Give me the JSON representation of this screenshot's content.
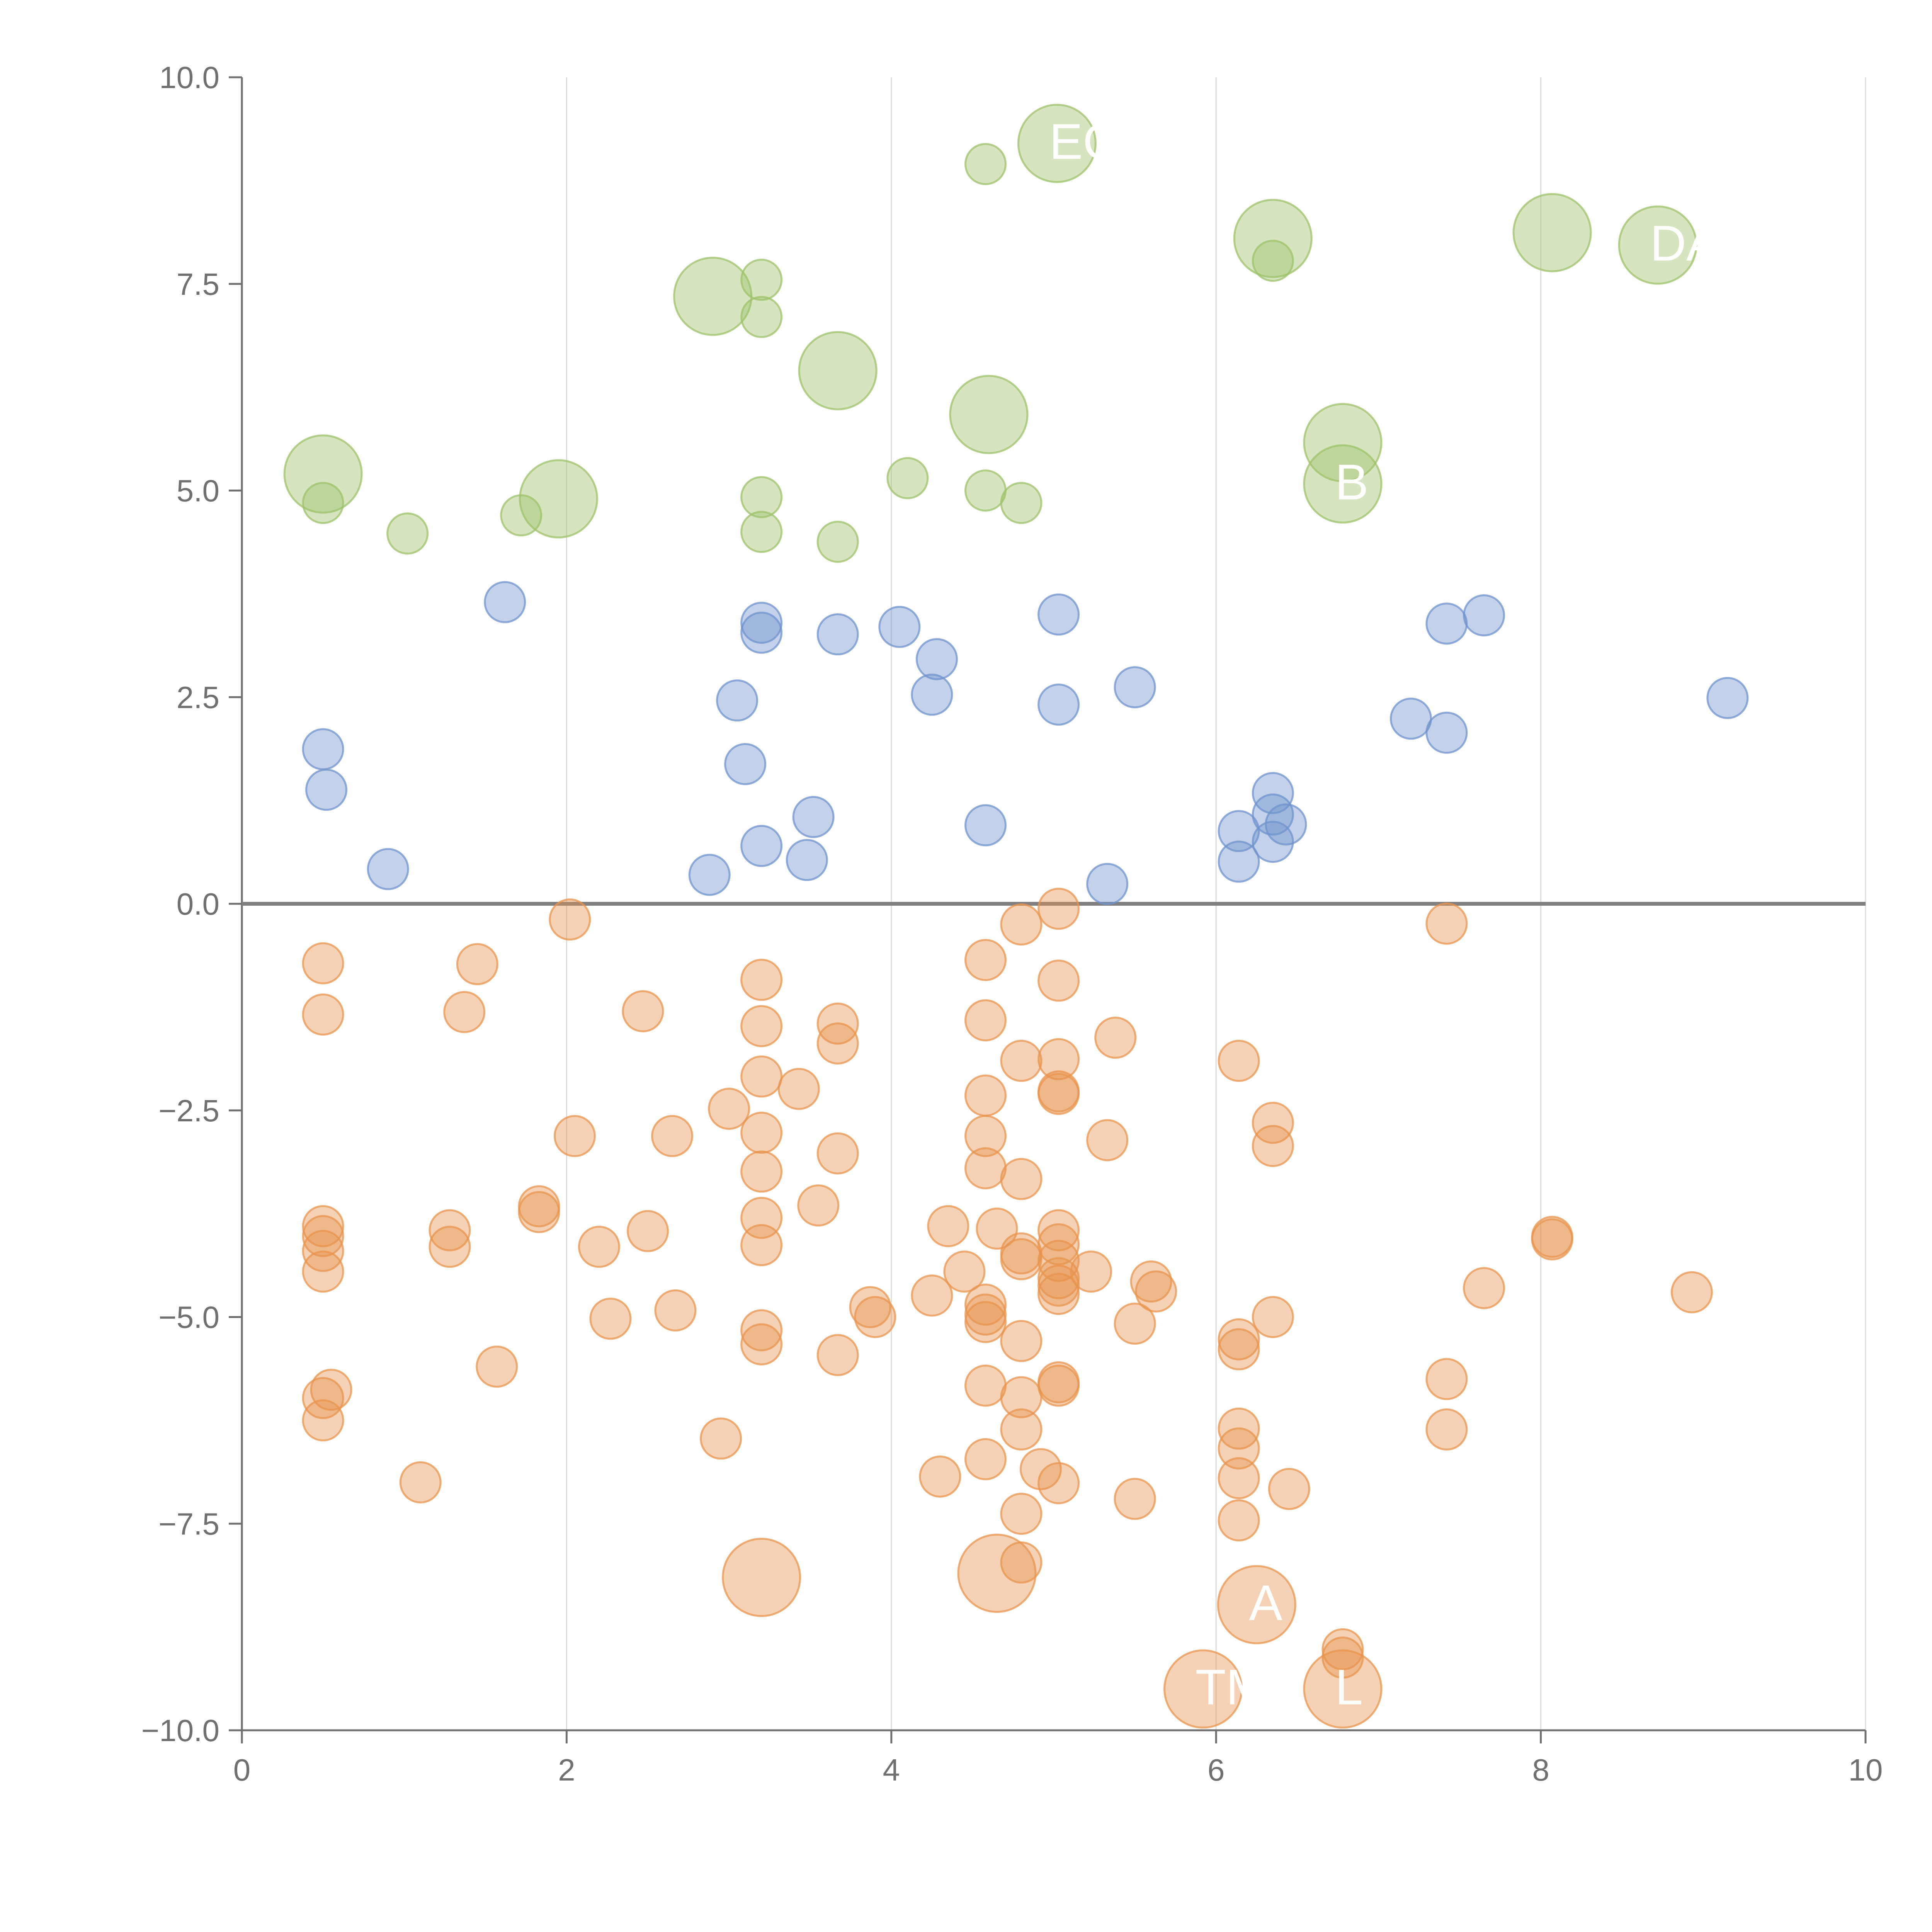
{
  "chart_data": {
    "type": "scatter",
    "title": "",
    "xlabel": "",
    "ylabel": "",
    "xlim": [
      0,
      10
    ],
    "ylim": [
      -10,
      10
    ],
    "grid": "vertical",
    "x_ticks": [
      "0",
      "2",
      "4",
      "6",
      "8",
      "10"
    ],
    "y_ticks": [
      "−10.0",
      "−7.5",
      "−5.0",
      "−2.5",
      "0.0",
      "2.5",
      "5.0",
      "7.5",
      "10.0"
    ],
    "colors": {
      "green": "#9dc26a",
      "blue": "#6f93ce",
      "orange": "#e8944e",
      "axis": "#707070",
      "grid": "#dcdcdc",
      "zero_line": "#808080"
    },
    "series": [
      {
        "name": "green",
        "points": [
          {
            "x": 0.5,
            "y": 5.2,
            "size": "large"
          },
          {
            "x": 0.5,
            "y": 4.85
          },
          {
            "x": 1.02,
            "y": 4.48
          },
          {
            "x": 1.72,
            "y": 4.7
          },
          {
            "x": 1.95,
            "y": 4.9,
            "size": "large"
          },
          {
            "x": 2.9,
            "y": 7.35,
            "size": "large"
          },
          {
            "x": 3.2,
            "y": 7.55
          },
          {
            "x": 3.2,
            "y": 7.1
          },
          {
            "x": 3.2,
            "y": 4.92
          },
          {
            "x": 3.2,
            "y": 4.5
          },
          {
            "x": 3.67,
            "y": 6.45,
            "size": "large"
          },
          {
            "x": 3.67,
            "y": 4.38
          },
          {
            "x": 4.1,
            "y": 5.15
          },
          {
            "x": 4.58,
            "y": 8.95
          },
          {
            "x": 4.58,
            "y": 5.0
          },
          {
            "x": 4.6,
            "y": 5.92,
            "size": "large"
          },
          {
            "x": 4.8,
            "y": 4.85
          },
          {
            "x": 5.02,
            "y": 9.2,
            "size": "large"
          },
          {
            "x": 6.35,
            "y": 8.05,
            "size": "large"
          },
          {
            "x": 6.35,
            "y": 7.78
          },
          {
            "x": 6.78,
            "y": 5.58,
            "size": "large"
          },
          {
            "x": 6.78,
            "y": 5.08,
            "size": "large"
          },
          {
            "x": 8.07,
            "y": 8.12,
            "size": "large"
          },
          {
            "x": 8.72,
            "y": 7.97,
            "size": "large"
          }
        ]
      },
      {
        "name": "blue",
        "points": [
          {
            "x": 0.5,
            "y": 1.87
          },
          {
            "x": 0.52,
            "y": 1.38
          },
          {
            "x": 0.9,
            "y": 0.42
          },
          {
            "x": 1.62,
            "y": 3.65
          },
          {
            "x": 2.88,
            "y": 0.35
          },
          {
            "x": 3.05,
            "y": 2.46
          },
          {
            "x": 3.1,
            "y": 1.69
          },
          {
            "x": 3.2,
            "y": 3.4
          },
          {
            "x": 3.2,
            "y": 3.28
          },
          {
            "x": 3.2,
            "y": 0.7
          },
          {
            "x": 3.48,
            "y": 0.53
          },
          {
            "x": 3.52,
            "y": 1.05
          },
          {
            "x": 3.67,
            "y": 3.26
          },
          {
            "x": 4.05,
            "y": 3.35
          },
          {
            "x": 4.25,
            "y": 2.53
          },
          {
            "x": 4.28,
            "y": 2.96
          },
          {
            "x": 4.58,
            "y": 0.95
          },
          {
            "x": 5.03,
            "y": 3.5
          },
          {
            "x": 5.03,
            "y": 2.41
          },
          {
            "x": 5.33,
            "y": 0.24
          },
          {
            "x": 5.5,
            "y": 2.62
          },
          {
            "x": 6.14,
            "y": 0.88
          },
          {
            "x": 6.14,
            "y": 0.51
          },
          {
            "x": 6.35,
            "y": 1.34
          },
          {
            "x": 6.35,
            "y": 1.08
          },
          {
            "x": 6.35,
            "y": 0.75
          },
          {
            "x": 6.43,
            "y": 0.96
          },
          {
            "x": 7.2,
            "y": 2.24
          },
          {
            "x": 7.42,
            "y": 3.39
          },
          {
            "x": 7.42,
            "y": 2.07
          },
          {
            "x": 7.65,
            "y": 3.49
          },
          {
            "x": 9.15,
            "y": 2.49
          }
        ]
      },
      {
        "name": "orange",
        "points": [
          {
            "x": 0.5,
            "y": -0.72
          },
          {
            "x": 0.5,
            "y": -1.34
          },
          {
            "x": 0.5,
            "y": -3.9
          },
          {
            "x": 0.5,
            "y": -4.02
          },
          {
            "x": 0.5,
            "y": -4.2
          },
          {
            "x": 0.5,
            "y": -4.45
          },
          {
            "x": 0.5,
            "y": -5.98
          },
          {
            "x": 0.55,
            "y": -5.88
          },
          {
            "x": 0.5,
            "y": -6.25
          },
          {
            "x": 1.1,
            "y": -7.0
          },
          {
            "x": 1.28,
            "y": -3.95
          },
          {
            "x": 1.28,
            "y": -4.15
          },
          {
            "x": 1.37,
            "y": -1.31
          },
          {
            "x": 1.45,
            "y": -0.73
          },
          {
            "x": 1.57,
            "y": -5.6
          },
          {
            "x": 1.83,
            "y": -3.66
          },
          {
            "x": 1.83,
            "y": -3.73
          },
          {
            "x": 2.02,
            "y": -0.19
          },
          {
            "x": 2.05,
            "y": -2.81
          },
          {
            "x": 2.2,
            "y": -4.15
          },
          {
            "x": 2.27,
            "y": -5.02
          },
          {
            "x": 2.47,
            "y": -1.3
          },
          {
            "x": 2.5,
            "y": -3.96
          },
          {
            "x": 2.65,
            "y": -2.81
          },
          {
            "x": 2.67,
            "y": -4.92
          },
          {
            "x": 2.95,
            "y": -6.47
          },
          {
            "x": 3.0,
            "y": -2.48
          },
          {
            "x": 3.2,
            "y": -0.92
          },
          {
            "x": 3.2,
            "y": -1.48
          },
          {
            "x": 3.2,
            "y": -2.09
          },
          {
            "x": 3.2,
            "y": -2.77
          },
          {
            "x": 3.2,
            "y": -3.24
          },
          {
            "x": 3.2,
            "y": -3.8
          },
          {
            "x": 3.2,
            "y": -4.13
          },
          {
            "x": 3.2,
            "y": -5.16
          },
          {
            "x": 3.2,
            "y": -5.33
          },
          {
            "x": 3.2,
            "y": -8.15,
            "size": "large"
          },
          {
            "x": 3.43,
            "y": -2.24
          },
          {
            "x": 3.55,
            "y": -3.65
          },
          {
            "x": 3.67,
            "y": -1.45
          },
          {
            "x": 3.67,
            "y": -1.69
          },
          {
            "x": 3.67,
            "y": -3.02
          },
          {
            "x": 3.67,
            "y": -5.46
          },
          {
            "x": 3.87,
            "y": -4.88
          },
          {
            "x": 3.9,
            "y": -5.0
          },
          {
            "x": 4.25,
            "y": -4.74
          },
          {
            "x": 4.3,
            "y": -6.93
          },
          {
            "x": 4.35,
            "y": -3.9
          },
          {
            "x": 4.45,
            "y": -4.45
          },
          {
            "x": 4.58,
            "y": -0.68
          },
          {
            "x": 4.58,
            "y": -1.41
          },
          {
            "x": 4.58,
            "y": -2.32
          },
          {
            "x": 4.58,
            "y": -2.81
          },
          {
            "x": 4.58,
            "y": -3.2
          },
          {
            "x": 4.58,
            "y": -4.85
          },
          {
            "x": 4.58,
            "y": -4.97
          },
          {
            "x": 4.58,
            "y": -5.06
          },
          {
            "x": 4.58,
            "y": -5.83
          },
          {
            "x": 4.58,
            "y": -6.72
          },
          {
            "x": 4.65,
            "y": -8.1,
            "size": "large"
          },
          {
            "x": 4.65,
            "y": -3.93
          },
          {
            "x": 4.8,
            "y": -0.25
          },
          {
            "x": 4.8,
            "y": -1.9
          },
          {
            "x": 4.8,
            "y": -3.33
          },
          {
            "x": 4.8,
            "y": -4.23
          },
          {
            "x": 4.8,
            "y": -4.3
          },
          {
            "x": 4.8,
            "y": -5.29
          },
          {
            "x": 4.8,
            "y": -5.97
          },
          {
            "x": 4.8,
            "y": -6.36
          },
          {
            "x": 4.8,
            "y": -7.38
          },
          {
            "x": 4.8,
            "y": -7.97
          },
          {
            "x": 4.92,
            "y": -6.84
          },
          {
            "x": 5.03,
            "y": -0.06
          },
          {
            "x": 5.03,
            "y": -0.93
          },
          {
            "x": 5.03,
            "y": -1.88
          },
          {
            "x": 5.03,
            "y": -2.27
          },
          {
            "x": 5.03,
            "y": -2.3
          },
          {
            "x": 5.03,
            "y": -3.95
          },
          {
            "x": 5.03,
            "y": -4.12
          },
          {
            "x": 5.03,
            "y": -4.32
          },
          {
            "x": 5.03,
            "y": -4.53
          },
          {
            "x": 5.03,
            "y": -4.62
          },
          {
            "x": 5.03,
            "y": -4.72
          },
          {
            "x": 5.03,
            "y": -5.79
          },
          {
            "x": 5.03,
            "y": -5.83
          },
          {
            "x": 5.03,
            "y": -7.01
          },
          {
            "x": 5.23,
            "y": -4.45
          },
          {
            "x": 5.33,
            "y": -2.86
          },
          {
            "x": 5.38,
            "y": -1.62
          },
          {
            "x": 5.5,
            "y": -5.08
          },
          {
            "x": 5.5,
            "y": -7.2
          },
          {
            "x": 5.6,
            "y": -4.57
          },
          {
            "x": 5.63,
            "y": -4.69
          },
          {
            "x": 5.92,
            "y": -9.5,
            "size": "large"
          },
          {
            "x": 6.14,
            "y": -1.9
          },
          {
            "x": 6.14,
            "y": -5.27
          },
          {
            "x": 6.14,
            "y": -5.39
          },
          {
            "x": 6.14,
            "y": -6.35
          },
          {
            "x": 6.14,
            "y": -6.59
          },
          {
            "x": 6.14,
            "y": -6.95
          },
          {
            "x": 6.14,
            "y": -7.46
          },
          {
            "x": 6.25,
            "y": -8.48,
            "size": "large"
          },
          {
            "x": 6.35,
            "y": -2.65
          },
          {
            "x": 6.35,
            "y": -2.93
          },
          {
            "x": 6.35,
            "y": -5.0
          },
          {
            "x": 6.45,
            "y": -7.08
          },
          {
            "x": 6.78,
            "y": -9.02
          },
          {
            "x": 6.78,
            "y": -9.12
          },
          {
            "x": 6.78,
            "y": -9.5,
            "size": "large"
          },
          {
            "x": 7.42,
            "y": -0.24
          },
          {
            "x": 7.42,
            "y": -5.75
          },
          {
            "x": 7.42,
            "y": -6.36
          },
          {
            "x": 7.65,
            "y": -4.65
          },
          {
            "x": 8.07,
            "y": -4.03
          },
          {
            "x": 8.07,
            "y": -4.06
          },
          {
            "x": 8.93,
            "y": -4.7
          }
        ]
      }
    ],
    "annotations": [
      {
        "text": "EC",
        "x": 5.02,
        "y": 9.2
      },
      {
        "text": "DA",
        "x": 8.72,
        "y": 7.97
      },
      {
        "text": "B",
        "x": 6.78,
        "y": 5.08
      },
      {
        "text": "A",
        "x": 6.25,
        "y": -8.48
      },
      {
        "text": "TM",
        "x": 5.92,
        "y": -9.5
      },
      {
        "text": "L",
        "x": 6.78,
        "y": -9.5
      }
    ]
  }
}
